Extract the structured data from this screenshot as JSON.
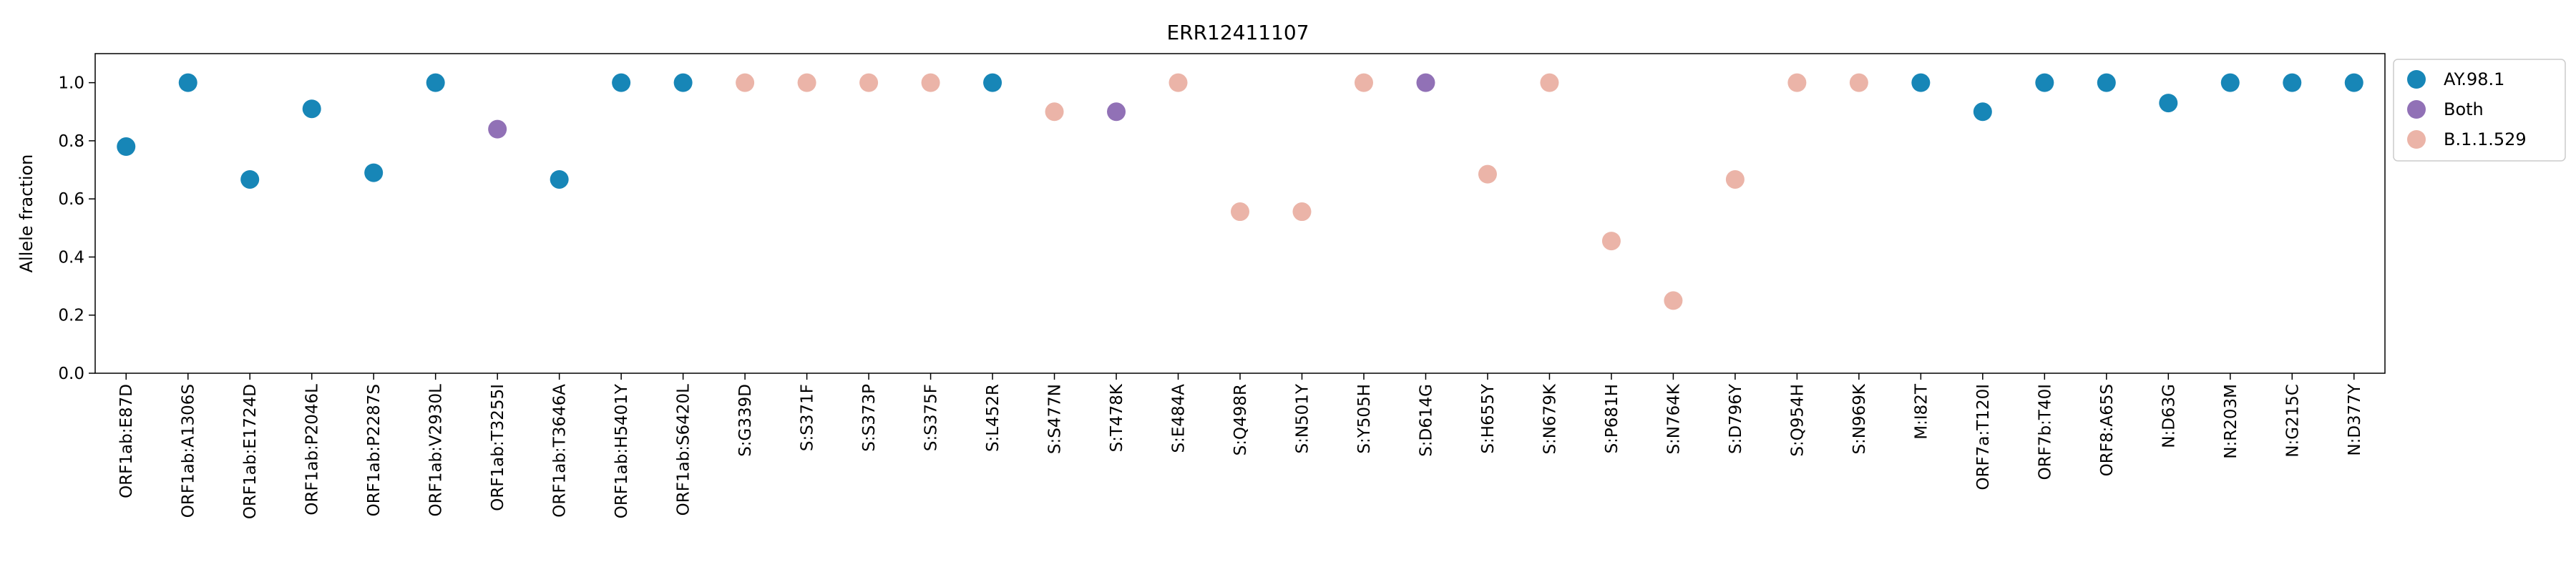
{
  "chart_data": {
    "type": "scatter",
    "title": "ERR12411107",
    "xlabel": "",
    "ylabel": "Allele fraction",
    "ylim": [
      0,
      1.1
    ],
    "yticks": [
      "0.0",
      "0.2",
      "0.4",
      "0.6",
      "0.8",
      "1.0"
    ],
    "grid": false,
    "legend_position": "outside-top-right",
    "colors": {
      "AY.98.1": "#1786b7",
      "Both": "#9171b6",
      "B.1.1.529": "#ebb4a8"
    },
    "legend": [
      "AY.98.1",
      "Both",
      "B.1.1.529"
    ],
    "categories": [
      "ORF1ab:E87D",
      "ORF1ab:A1306S",
      "ORF1ab:E1724D",
      "ORF1ab:P2046L",
      "ORF1ab:P2287S",
      "ORF1ab:V2930L",
      "ORF1ab:T3255I",
      "ORF1ab:T3646A",
      "ORF1ab:H5401Y",
      "ORF1ab:S6420L",
      "S:G339D",
      "S:S371F",
      "S:S373P",
      "S:S375F",
      "S:L452R",
      "S:S477N",
      "S:T478K",
      "S:E484A",
      "S:Q498R",
      "S:N501Y",
      "S:Y505H",
      "S:D614G",
      "S:H655Y",
      "S:N679K",
      "S:P681H",
      "S:N764K",
      "S:D796Y",
      "S:Q954H",
      "S:N969K",
      "M:I82T",
      "ORF7a:T120I",
      "ORF7b:T40I",
      "ORF8:A65S",
      "N:D63G",
      "N:R203M",
      "N:G215C",
      "N:D377Y"
    ],
    "values": [
      0.78,
      1.0,
      0.667,
      0.91,
      0.69,
      1.0,
      0.84,
      0.667,
      1.0,
      1.0,
      1.0,
      1.0,
      1.0,
      1.0,
      1.0,
      0.9,
      0.9,
      1.0,
      0.556,
      0.556,
      1.0,
      1.0,
      0.685,
      1.0,
      0.455,
      0.25,
      0.667,
      1.0,
      1.0,
      1.0,
      0.9,
      1.0,
      1.0,
      0.93,
      1.0,
      1.0,
      1.0
    ],
    "groups": [
      "AY.98.1",
      "AY.98.1",
      "AY.98.1",
      "AY.98.1",
      "AY.98.1",
      "AY.98.1",
      "Both",
      "AY.98.1",
      "AY.98.1",
      "AY.98.1",
      "B.1.1.529",
      "B.1.1.529",
      "B.1.1.529",
      "B.1.1.529",
      "AY.98.1",
      "B.1.1.529",
      "Both",
      "B.1.1.529",
      "B.1.1.529",
      "B.1.1.529",
      "B.1.1.529",
      "Both",
      "B.1.1.529",
      "B.1.1.529",
      "B.1.1.529",
      "B.1.1.529",
      "B.1.1.529",
      "B.1.1.529",
      "B.1.1.529",
      "AY.98.1",
      "AY.98.1",
      "AY.98.1",
      "AY.98.1",
      "AY.98.1",
      "AY.98.1",
      "AY.98.1",
      "AY.98.1"
    ]
  }
}
